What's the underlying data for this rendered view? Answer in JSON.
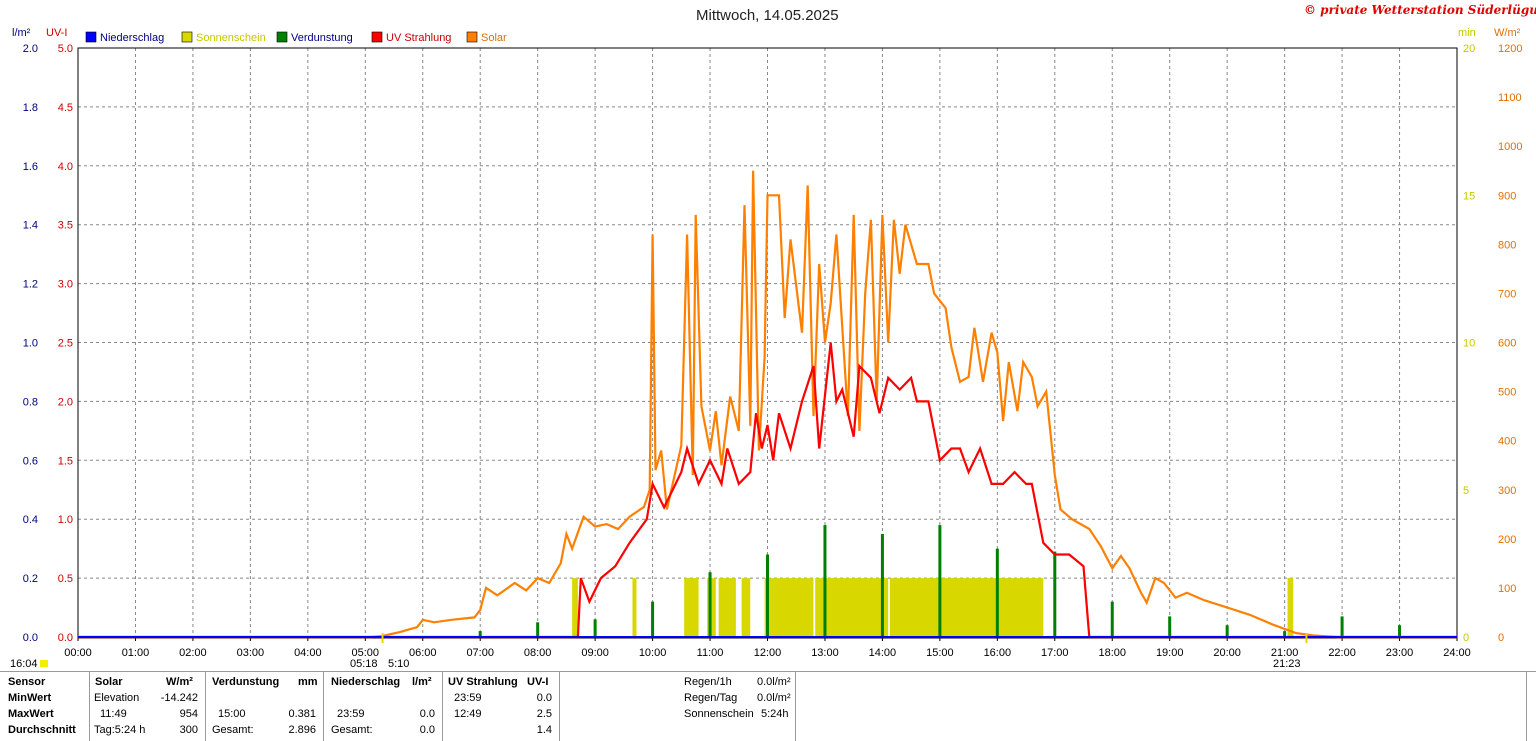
{
  "header": {
    "title": "Mittwoch, 14.05.2025",
    "copyright": "© private Wetterstation Süderlügum"
  },
  "axes": {
    "left1_unit": "l/m²",
    "left2_unit": "UV-I",
    "right1_unit": "min",
    "right2_unit": "W/m²",
    "left1_ticks": [
      "0.0",
      "0.2",
      "0.4",
      "0.6",
      "0.8",
      "1.0",
      "1.2",
      "1.4",
      "1.6",
      "1.8",
      "2.0"
    ],
    "left2_ticks": [
      "0.0",
      "0.5",
      "1.0",
      "1.5",
      "2.0",
      "2.5",
      "3.0",
      "3.5",
      "4.0",
      "4.5",
      "5.0"
    ],
    "right1_ticks": [
      "0",
      "5",
      "10",
      "15",
      "20"
    ],
    "right2_ticks": [
      "0",
      "100",
      "200",
      "300",
      "400",
      "500",
      "600",
      "700",
      "800",
      "900",
      "1000",
      "1100",
      "1200"
    ],
    "x_ticks": [
      "00:00",
      "01:00",
      "02:00",
      "03:00",
      "04:00",
      "05:00",
      "06:00",
      "07:00",
      "08:00",
      "09:00",
      "10:00",
      "11:00",
      "12:00",
      "13:00",
      "14:00",
      "15:00",
      "16:00",
      "17:00",
      "18:00",
      "19:00",
      "20:00",
      "21:00",
      "22:00",
      "23:00",
      "24:00"
    ]
  },
  "legend": [
    {
      "label": "Niederschlag",
      "color": "#0000ff",
      "text_color": "#000080"
    },
    {
      "label": "Sonnenschein",
      "color": "#d8d800",
      "text_color": "#c8c800"
    },
    {
      "label": "Verdunstung",
      "color": "#008000",
      "text_color": "#000080"
    },
    {
      "label": "UV Strahlung",
      "color": "#ff0000",
      "text_color": "#cc0000"
    },
    {
      "label": "Solar",
      "color": "#ff8000",
      "text_color": "#e07000"
    }
  ],
  "markers": {
    "left_time": "16:04",
    "sunrise": "05:18",
    "sunrise2": "5:10",
    "sunset": "21:23"
  },
  "chart_data": {
    "type": "line",
    "title": "Mittwoch, 14.05.2025",
    "x_range_hours": [
      0,
      24
    ],
    "ylim_precip": [
      0,
      2.0
    ],
    "ylim_uv": [
      0,
      5.0
    ],
    "ylim_sun_min": [
      0,
      20
    ],
    "ylim_solar": [
      0,
      1200
    ],
    "series": [
      {
        "name": "Solar",
        "unit": "W/m²",
        "color": "#ff8000",
        "points": [
          [
            0,
            0
          ],
          [
            5.1,
            0
          ],
          [
            5.3,
            2
          ],
          [
            5.6,
            10
          ],
          [
            5.9,
            20
          ],
          [
            6.0,
            35
          ],
          [
            6.2,
            30
          ],
          [
            6.5,
            35
          ],
          [
            6.9,
            40
          ],
          [
            7.0,
            55
          ],
          [
            7.1,
            100
          ],
          [
            7.3,
            85
          ],
          [
            7.6,
            110
          ],
          [
            7.8,
            95
          ],
          [
            8.0,
            120
          ],
          [
            8.2,
            110
          ],
          [
            8.4,
            150
          ],
          [
            8.5,
            210
          ],
          [
            8.6,
            180
          ],
          [
            8.8,
            245
          ],
          [
            9.0,
            225
          ],
          [
            9.2,
            230
          ],
          [
            9.4,
            220
          ],
          [
            9.6,
            245
          ],
          [
            9.85,
            265
          ],
          [
            9.95,
            300
          ],
          [
            10.0,
            820
          ],
          [
            10.05,
            340
          ],
          [
            10.15,
            380
          ],
          [
            10.25,
            260
          ],
          [
            10.5,
            390
          ],
          [
            10.6,
            820
          ],
          [
            10.7,
            330
          ],
          [
            10.75,
            860
          ],
          [
            10.85,
            470
          ],
          [
            11.0,
            380
          ],
          [
            11.1,
            460
          ],
          [
            11.2,
            350
          ],
          [
            11.35,
            490
          ],
          [
            11.5,
            420
          ],
          [
            11.6,
            880
          ],
          [
            11.7,
            430
          ],
          [
            11.75,
            950
          ],
          [
            11.85,
            380
          ],
          [
            11.95,
            570
          ],
          [
            12.0,
            900
          ],
          [
            12.2,
            900
          ],
          [
            12.3,
            650
          ],
          [
            12.4,
            810
          ],
          [
            12.6,
            620
          ],
          [
            12.7,
            920
          ],
          [
            12.8,
            450
          ],
          [
            12.9,
            760
          ],
          [
            13.0,
            600
          ],
          [
            13.1,
            680
          ],
          [
            13.2,
            820
          ],
          [
            13.4,
            450
          ],
          [
            13.5,
            860
          ],
          [
            13.6,
            420
          ],
          [
            13.7,
            700
          ],
          [
            13.8,
            850
          ],
          [
            13.9,
            480
          ],
          [
            14.0,
            860
          ],
          [
            14.1,
            600
          ],
          [
            14.2,
            850
          ],
          [
            14.3,
            740
          ],
          [
            14.4,
            840
          ],
          [
            14.6,
            760
          ],
          [
            14.8,
            760
          ],
          [
            14.9,
            700
          ],
          [
            15.1,
            670
          ],
          [
            15.2,
            590
          ],
          [
            15.35,
            520
          ],
          [
            15.5,
            530
          ],
          [
            15.6,
            630
          ],
          [
            15.75,
            520
          ],
          [
            15.9,
            620
          ],
          [
            16.0,
            580
          ],
          [
            16.1,
            440
          ],
          [
            16.2,
            560
          ],
          [
            16.35,
            460
          ],
          [
            16.45,
            560
          ],
          [
            16.6,
            530
          ],
          [
            16.7,
            470
          ],
          [
            16.85,
            500
          ],
          [
            17.0,
            330
          ],
          [
            17.1,
            260
          ],
          [
            17.3,
            240
          ],
          [
            17.6,
            220
          ],
          [
            17.8,
            185
          ],
          [
            18.0,
            140
          ],
          [
            18.15,
            165
          ],
          [
            18.3,
            140
          ],
          [
            18.5,
            90
          ],
          [
            18.6,
            70
          ],
          [
            18.75,
            120
          ],
          [
            18.9,
            110
          ],
          [
            19.1,
            80
          ],
          [
            19.3,
            90
          ],
          [
            19.6,
            75
          ],
          [
            20.0,
            60
          ],
          [
            20.4,
            45
          ],
          [
            20.8,
            25
          ],
          [
            21.2,
            8
          ],
          [
            21.5,
            3
          ],
          [
            21.9,
            0
          ],
          [
            24,
            0
          ]
        ]
      },
      {
        "name": "UV Strahlung",
        "unit": "UV-I",
        "color": "#ff0000",
        "points": [
          [
            0,
            0
          ],
          [
            8.7,
            0
          ],
          [
            8.75,
            0.5
          ],
          [
            8.9,
            0.3
          ],
          [
            9.1,
            0.5
          ],
          [
            9.35,
            0.6
          ],
          [
            9.6,
            0.8
          ],
          [
            9.75,
            0.9
          ],
          [
            9.9,
            1.0
          ],
          [
            10.0,
            1.3
          ],
          [
            10.2,
            1.1
          ],
          [
            10.4,
            1.3
          ],
          [
            10.5,
            1.4
          ],
          [
            10.6,
            1.6
          ],
          [
            10.8,
            1.3
          ],
          [
            11.0,
            1.5
          ],
          [
            11.2,
            1.3
          ],
          [
            11.3,
            1.6
          ],
          [
            11.5,
            1.3
          ],
          [
            11.7,
            1.4
          ],
          [
            11.8,
            1.9
          ],
          [
            11.9,
            1.6
          ],
          [
            12.0,
            1.8
          ],
          [
            12.1,
            1.5
          ],
          [
            12.2,
            1.9
          ],
          [
            12.4,
            1.6
          ],
          [
            12.6,
            2.0
          ],
          [
            12.8,
            2.3
          ],
          [
            12.9,
            1.6
          ],
          [
            13.1,
            2.5
          ],
          [
            13.2,
            2.0
          ],
          [
            13.3,
            2.1
          ],
          [
            13.5,
            1.7
          ],
          [
            13.6,
            2.3
          ],
          [
            13.8,
            2.2
          ],
          [
            13.95,
            1.9
          ],
          [
            14.1,
            2.2
          ],
          [
            14.3,
            2.1
          ],
          [
            14.5,
            2.2
          ],
          [
            14.6,
            2.0
          ],
          [
            14.8,
            2.0
          ],
          [
            15.0,
            1.5
          ],
          [
            15.2,
            1.6
          ],
          [
            15.35,
            1.6
          ],
          [
            15.5,
            1.4
          ],
          [
            15.7,
            1.6
          ],
          [
            15.9,
            1.3
          ],
          [
            16.1,
            1.3
          ],
          [
            16.3,
            1.4
          ],
          [
            16.5,
            1.3
          ],
          [
            16.6,
            1.3
          ],
          [
            16.8,
            0.8
          ],
          [
            17.0,
            0.7
          ],
          [
            17.25,
            0.7
          ],
          [
            17.5,
            0.6
          ],
          [
            17.6,
            0
          ],
          [
            24,
            0
          ]
        ]
      },
      {
        "name": "Sonnenschein",
        "unit": "min",
        "color": "#d8d800",
        "bars": [
          [
            8.6,
            8.7
          ],
          [
            9.65,
            9.72
          ],
          [
            10.55,
            10.8
          ],
          [
            10.95,
            11.1
          ],
          [
            11.15,
            11.45
          ],
          [
            11.55,
            11.7
          ],
          [
            11.95,
            12.8
          ],
          [
            12.83,
            14.1
          ],
          [
            14.13,
            15.0
          ],
          [
            15.02,
            16.8
          ],
          [
            21.05,
            21.15
          ]
        ],
        "bar_value": 2
      },
      {
        "name": "Verdunstung",
        "unit": "l/m²",
        "color": "#008000",
        "spikes": [
          [
            7.0,
            0.02
          ],
          [
            8.0,
            0.05
          ],
          [
            9.0,
            0.06
          ],
          [
            10.0,
            0.12
          ],
          [
            11.0,
            0.22
          ],
          [
            12.0,
            0.28
          ],
          [
            13.0,
            0.38
          ],
          [
            14.0,
            0.35
          ],
          [
            15.0,
            0.38
          ],
          [
            16.0,
            0.3
          ],
          [
            17.0,
            0.29
          ],
          [
            18.0,
            0.12
          ],
          [
            19.0,
            0.07
          ],
          [
            20.0,
            0.04
          ],
          [
            21.0,
            0.02
          ],
          [
            22.0,
            0.07
          ],
          [
            23.0,
            0.04
          ]
        ]
      },
      {
        "name": "Niederschlag",
        "unit": "l/m²",
        "color": "#0000ff",
        "values": [
          0
        ]
      }
    ]
  },
  "table": {
    "headers": {
      "sensor": "Sensor",
      "solar": "Solar",
      "solar_unit": "W/m²",
      "evap": "Verdunstung",
      "evap_unit": "mm",
      "rain": "Niederschlag",
      "rain_unit": "l/m²",
      "uv": "UV Strahlung",
      "uv_unit": "UV-I"
    },
    "row_labels": [
      "MinWert",
      "MaxWert",
      "Durchschnitt"
    ],
    "solar": {
      "min_label": "Elevation",
      "min_value": "-14.242",
      "max_time": "11:49",
      "max_value": "954",
      "avg_label": "Tag:5:24 h",
      "avg_value": "300"
    },
    "evap": {
      "max_time": "15:00",
      "max_value": "0.381",
      "sum_label": "Gesamt:",
      "sum_value": "2.896"
    },
    "rain": {
      "max_time": "23:59",
      "max_value": "0.0",
      "sum_label": "Gesamt:",
      "sum_value": "0.0"
    },
    "uv": {
      "min_time": "23:59",
      "min_value": "0.0",
      "max_time": "12:49",
      "max_value": "2.5",
      "avg_value": "1.4"
    },
    "extra": {
      "rain_1h_label": "Regen/1h",
      "rain_1h_value": "0.0l/m²",
      "rain_day_label": "Regen/Tag",
      "rain_day_value": "0.0l/m²",
      "sun_label": "Sonnenschein",
      "sun_value": "5:24h"
    }
  }
}
